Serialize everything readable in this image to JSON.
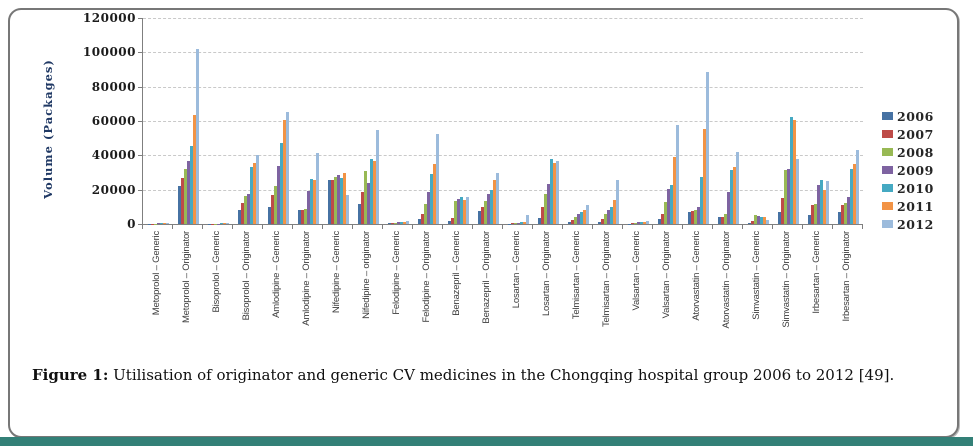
{
  "caption": {
    "prefix": "Figure 1:",
    "text": " Utilisation of originator and generic CV medicines in the Chongqing hospital group 2006 to 2012 [49]."
  },
  "page": {
    "bottom_band_color": "#338077",
    "card_border_color": "#777777"
  },
  "chart_data": {
    "type": "bar",
    "title": "",
    "xlabel": "",
    "ylabel": "Volume (Packages)",
    "ylim": [
      0,
      120000
    ],
    "ytick_step": 20000,
    "grid": true,
    "legend_position": "right",
    "categories": [
      "Metoprolol – Generic",
      "Metoprolol – Originator",
      "Bisoprolol – Generic",
      "Bisoprolol – Originator",
      "Amlodipine – Generic",
      "Amlodipine – Originator",
      "Nifedipine – Generic",
      "Nifedipine – originator",
      "Felodipine – Generic",
      "Felodipine – Originator",
      "Benazepril – Generic",
      "Benazepril – Originator",
      "Losartan – Generic",
      "Losartan – Originator",
      "Telmisartan – Generic",
      "Telmisartan – Originator",
      "Valsartan – Generic",
      "Valsartan – Originator",
      "Atorvastatin – Generic",
      "Atorvastatin – Originator",
      "Simvastatin – Generic",
      "Simvastatin – Originator",
      "Irbesartan – Generic",
      "Irbesartan – Originator"
    ],
    "series": [
      {
        "name": "2006",
        "color": "#4672A3",
        "values": [
          200,
          22000,
          150,
          8000,
          9900,
          8000,
          25800,
          11800,
          400,
          2700,
          2000,
          7500,
          300,
          3500,
          1000,
          1200,
          300,
          3100,
          7000,
          3800,
          500,
          7000,
          5100,
          7000
        ]
      },
      {
        "name": "2007",
        "color": "#BE4B48",
        "values": [
          250,
          27000,
          200,
          12000,
          16700,
          8300,
          25600,
          18700,
          600,
          6000,
          3500,
          10000,
          400,
          10000,
          2300,
          3100,
          500,
          6000,
          7400,
          4200,
          2000,
          15200,
          10900,
          10900
        ]
      },
      {
        "name": "2008",
        "color": "#98B954",
        "values": [
          300,
          32000,
          250,
          16500,
          22000,
          8600,
          27400,
          30900,
          800,
          11800,
          13500,
          13500,
          500,
          17700,
          4100,
          6000,
          700,
          12800,
          8000,
          6000,
          5000,
          31300,
          11800,
          12400
        ]
      },
      {
        "name": "2009",
        "color": "#7E63A1",
        "values": [
          350,
          36500,
          300,
          17700,
          33600,
          19500,
          28400,
          24000,
          1000,
          18700,
          14500,
          17700,
          700,
          23500,
          6000,
          8000,
          900,
          20600,
          9900,
          18700,
          4500,
          32300,
          22600,
          15700
        ]
      },
      {
        "name": "2010",
        "color": "#45A9C2",
        "values": [
          400,
          45500,
          350,
          33000,
          47000,
          26000,
          27000,
          38000,
          1200,
          29300,
          15500,
          19600,
          900,
          37700,
          7000,
          9900,
          1100,
          22600,
          27400,
          31300,
          4000,
          62400,
          25500,
          32300
        ]
      },
      {
        "name": "2011",
        "color": "#F29345",
        "values": [
          450,
          63500,
          400,
          35500,
          60500,
          25500,
          29500,
          36500,
          1400,
          35200,
          14000,
          25500,
          1100,
          35800,
          8000,
          13800,
          1300,
          39100,
          55600,
          33300,
          4000,
          60500,
          19600,
          35200
        ]
      },
      {
        "name": "2012",
        "color": "#9CBBDC",
        "values": [
          500,
          102000,
          450,
          40000,
          65500,
          41500,
          17000,
          55000,
          1600,
          52500,
          16000,
          30000,
          5400,
          36600,
          10900,
          25500,
          1800,
          57600,
          88700,
          42000,
          2500,
          38100,
          24900,
          43000
        ]
      }
    ]
  }
}
